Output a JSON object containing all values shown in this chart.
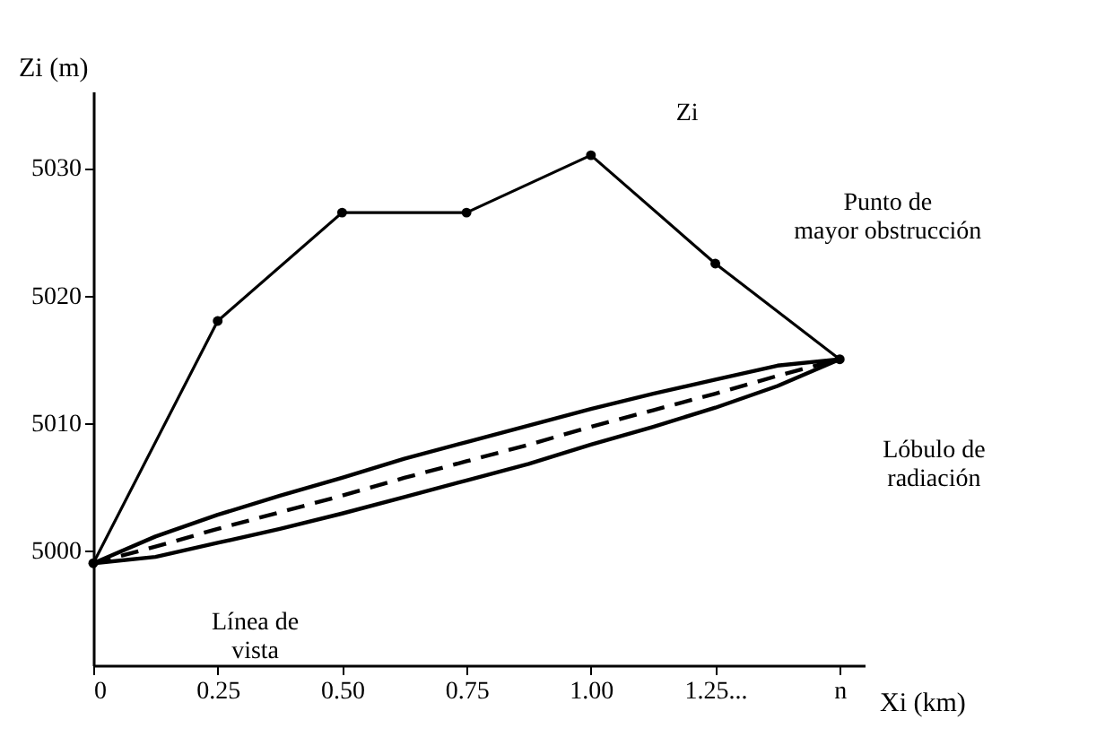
{
  "chart_data": {
    "type": "line",
    "xlabel": "Xi (km)",
    "ylabel": "Zi (m)",
    "xlim": [
      0,
      1.55
    ],
    "xticks": [
      0,
      0.25,
      {
        "value": 0.5,
        "label": "0.50"
      },
      0.75,
      {
        "value": 1.0,
        "label": "1.00"
      },
      {
        "value": 1.25,
        "label": "1.25..."
      },
      {
        "value": 1.5,
        "label": "n"
      }
    ],
    "ylim": [
      4991,
      5036
    ],
    "yticks": [
      5000,
      5010,
      5020,
      5030
    ],
    "grid": false,
    "series": [
      {
        "color": "#000000",
        "marker": "circle",
        "line_style": "solid",
        "x": [
          0,
          0.25,
          0.5,
          0.75,
          1.0,
          1.25,
          1.5
        ],
        "values": [
          4999,
          5018,
          5026.5,
          5026.5,
          5031,
          5022.5,
          5015
        ]
      },
      {
        "color": "#000000",
        "marker": "none",
        "line_style": "dashed",
        "x": [
          0,
          0.125,
          0.25,
          0.375,
          0.5,
          0.625,
          0.75,
          0.875,
          1.0,
          1.125,
          1.25,
          1.375,
          1.5
        ],
        "values": [
          4999,
          5000.3,
          5001.7,
          5003,
          5004.3,
          5005.7,
          5007,
          5008.3,
          5009.7,
          5011,
          5012.3,
          5013.7,
          5015
        ],
        "upper": [
          4999,
          5001.1,
          5002.8,
          5004.3,
          5005.7,
          5007.2,
          5008.5,
          5009.8,
          5011.1,
          5012.3,
          5013.4,
          5014.5,
          5015
        ],
        "lower": [
          4999,
          4999.5,
          5000.6,
          5001.7,
          5002.9,
          5004.2,
          5005.5,
          5006.8,
          5008.3,
          5009.7,
          5011.2,
          5012.9,
          5015
        ]
      }
    ],
    "annotations": [
      "Zi",
      "Punto de\nmayor obstrucción",
      "Lóbulo de\nradiación",
      "Línea de\nvista"
    ]
  }
}
